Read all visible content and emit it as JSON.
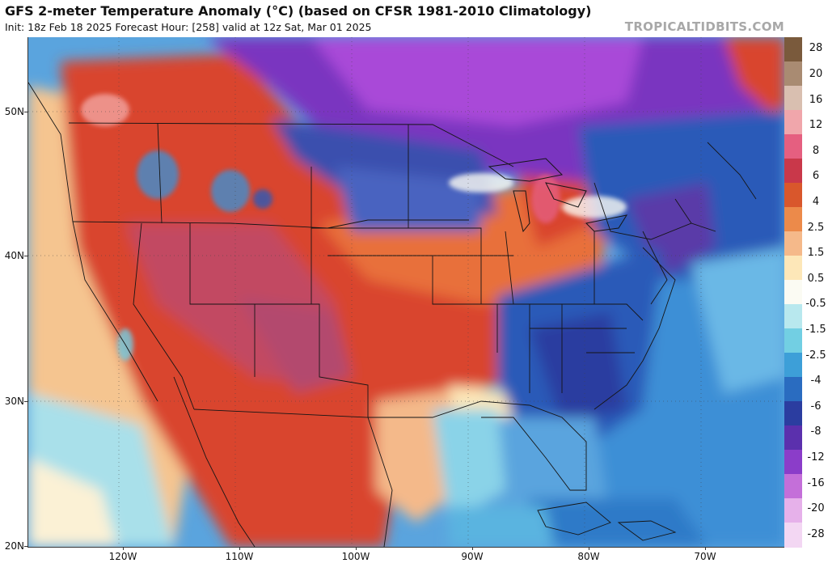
{
  "header": {
    "title": "GFS 2-meter Temperature Anomaly (°C) (based on CFSR 1981-2010 Climatology)",
    "subtitle": "Init: 18z Feb 18 2025   Forecast Hour: [258]   valid at 12z Sat, Mar 01 2025",
    "brand": "TROPICALTIDBITS.COM"
  },
  "axes": {
    "lat_labels": [
      "50N",
      "40N",
      "30N",
      "20N"
    ],
    "lon_labels": [
      "120W",
      "110W",
      "100W",
      "90W",
      "80W",
      "70W"
    ]
  },
  "legend": {
    "labels": [
      "28",
      "20",
      "16",
      "12",
      "8",
      "6",
      "4",
      "2.5",
      "1.5",
      "0.5",
      "-0.5",
      "-1.5",
      "-2.5",
      "-4",
      "-6",
      "-8",
      "-12",
      "-16",
      "-20",
      "-28"
    ],
    "colors": [
      "#7a5a3c",
      "#a98b72",
      "#d9bfb0",
      "#f0a6ab",
      "#e55f80",
      "#c9384a",
      "#d9572c",
      "#ec8a4a",
      "#f5b98a",
      "#fde7b8",
      "#fbfbf3",
      "#b8e8ee",
      "#72cfe3",
      "#3d9fd8",
      "#2a6cc0",
      "#2b3da0",
      "#5b30ad",
      "#8b3dc9",
      "#c46fd9",
      "#e6b1ea",
      "#f3d7f3"
    ]
  }
}
